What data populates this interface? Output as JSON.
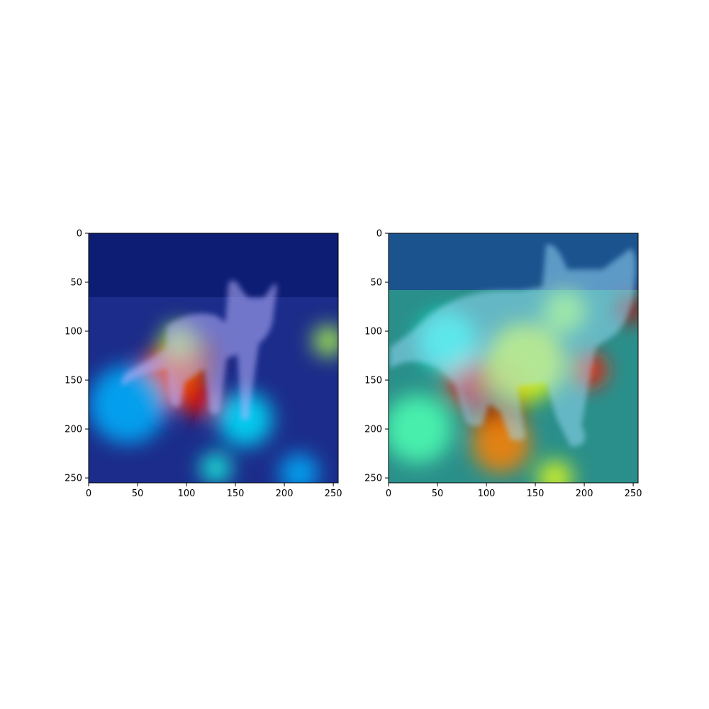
{
  "panels": [
    {
      "id": "left",
      "subject": "kitten standing, facing right",
      "x_ticks": [
        0,
        50,
        100,
        150,
        200,
        250
      ],
      "y_ticks": [
        0,
        50,
        100,
        150,
        200,
        250
      ],
      "range": [
        0,
        255
      ],
      "colormap": "jet",
      "hot_regions": [
        {
          "x": 105,
          "y": 128,
          "r": 26,
          "level": 1.0
        },
        {
          "x": 85,
          "y": 145,
          "r": 32,
          "level": 0.78
        },
        {
          "x": 112,
          "y": 170,
          "r": 18,
          "level": 0.9
        },
        {
          "x": 92,
          "y": 110,
          "r": 18,
          "level": 0.55
        },
        {
          "x": 245,
          "y": 110,
          "r": 16,
          "level": 0.55
        },
        {
          "x": 160,
          "y": 190,
          "r": 28,
          "level": 0.35
        },
        {
          "x": 40,
          "y": 175,
          "r": 40,
          "level": 0.3
        },
        {
          "x": 215,
          "y": 245,
          "r": 20,
          "level": 0.3
        },
        {
          "x": 130,
          "y": 240,
          "r": 16,
          "level": 0.4
        }
      ]
    },
    {
      "id": "right",
      "subject": "kitten standing, close up",
      "x_ticks": [
        0,
        50,
        100,
        150,
        200,
        250
      ],
      "y_ticks": [
        0,
        50,
        100,
        150,
        200,
        250
      ],
      "range": [
        0,
        255
      ],
      "colormap": "jet",
      "hot_regions": [
        {
          "x": 108,
          "y": 165,
          "r": 36,
          "level": 1.0
        },
        {
          "x": 82,
          "y": 150,
          "r": 24,
          "level": 0.9
        },
        {
          "x": 115,
          "y": 215,
          "r": 30,
          "level": 0.75
        },
        {
          "x": 205,
          "y": 140,
          "r": 18,
          "level": 0.85
        },
        {
          "x": 248,
          "y": 78,
          "r": 14,
          "level": 0.95
        },
        {
          "x": 140,
          "y": 132,
          "r": 40,
          "level": 0.6
        },
        {
          "x": 180,
          "y": 80,
          "r": 22,
          "level": 0.55
        },
        {
          "x": 170,
          "y": 250,
          "r": 18,
          "level": 0.6
        },
        {
          "x": 60,
          "y": 110,
          "r": 30,
          "level": 0.4
        },
        {
          "x": 30,
          "y": 200,
          "r": 35,
          "level": 0.45
        }
      ]
    }
  ]
}
